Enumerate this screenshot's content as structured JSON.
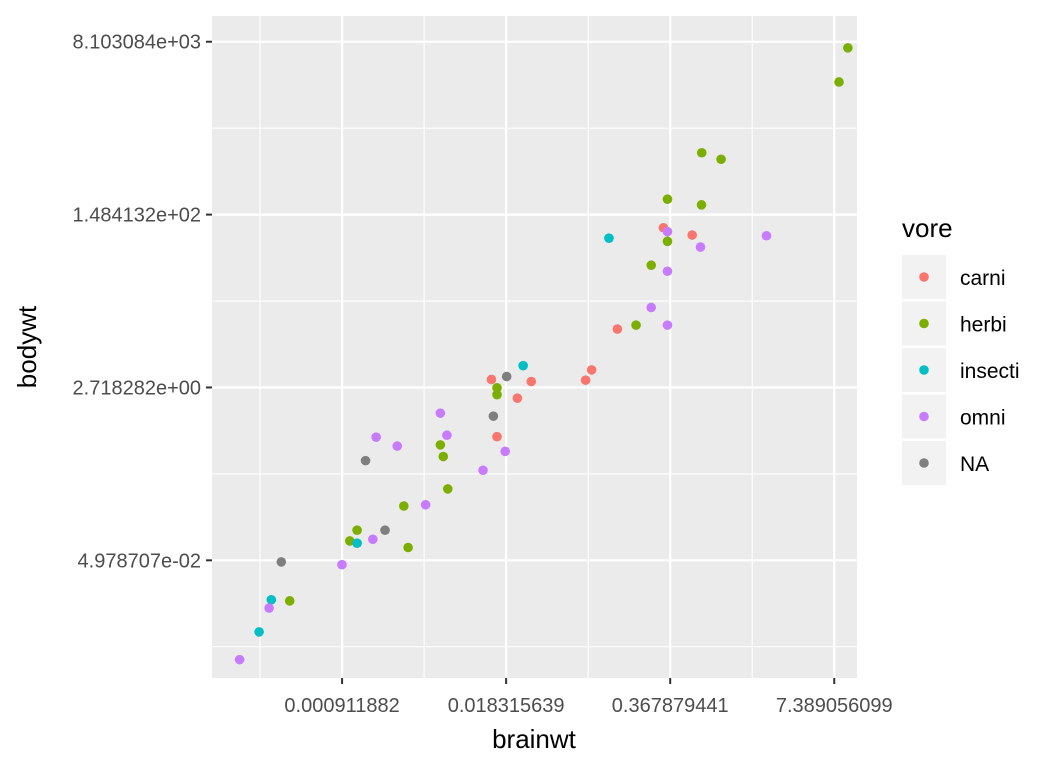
{
  "chart_data": {
    "type": "scatter",
    "title": "",
    "xlabel": "brainwt",
    "ylabel": "bodywt",
    "x_scale": "log",
    "y_scale": "log",
    "x_ticks": [
      {
        "label": "0.000911882",
        "value": 0.000911882
      },
      {
        "label": "0.018315639",
        "value": 0.018315639
      },
      {
        "label": "0.367879441",
        "value": 0.367879441
      },
      {
        "label": "7.389056099",
        "value": 7.389056099
      }
    ],
    "y_ticks": [
      {
        "label": "4.978707e-02",
        "value": 0.04978707
      },
      {
        "label": "2.718282e+00",
        "value": 2.718282
      },
      {
        "label": "1.484132e+02",
        "value": 148.4132
      },
      {
        "label": "8.103084e+03",
        "value": 8103.084
      }
    ],
    "xlim": [
      8.45e-05,
      11.2
    ],
    "ylim": [
      0.00327,
      14700
    ],
    "grid": true,
    "legend": {
      "title": "vore",
      "position": "right",
      "items": [
        {
          "label": "carni",
          "color": "#F8766D"
        },
        {
          "label": "herbi",
          "color": "#7CAE00"
        },
        {
          "label": "insecti",
          "color": "#00BFC4"
        },
        {
          "label": "omni",
          "color": "#C77CFF"
        },
        {
          "label": "NA",
          "color": "#7F7F7F"
        }
      ]
    },
    "series": [
      {
        "name": "carni",
        "color": "#F8766D",
        "points": [
          {
            "x": 0.325,
            "y": 109.5
          },
          {
            "x": 0.55,
            "y": 92.5
          },
          {
            "x": 0.14,
            "y": 10.5
          },
          {
            "x": 0.014,
            "y": 3.27
          },
          {
            "x": 0.029,
            "y": 3.12
          },
          {
            "x": 0.0784,
            "y": 3.22
          },
          {
            "x": 0.0875,
            "y": 4.08
          },
          {
            "x": 0.0225,
            "y": 2.12
          },
          {
            "x": 0.0155,
            "y": 0.87
          }
        ]
      },
      {
        "name": "herbi",
        "color": "#7CAE00",
        "points": [
          {
            "x": 9.48,
            "y": 7029
          },
          {
            "x": 8.06,
            "y": 3195
          },
          {
            "x": 0.655,
            "y": 621
          },
          {
            "x": 0.933,
            "y": 534
          },
          {
            "x": 0.652,
            "y": 186
          },
          {
            "x": 0.35,
            "y": 212
          },
          {
            "x": 0.35,
            "y": 80
          },
          {
            "x": 0.26,
            "y": 46
          },
          {
            "x": 0.197,
            "y": 11.5
          },
          {
            "x": 0.0155,
            "y": 2.7
          },
          {
            "x": 0.0155,
            "y": 2.3
          },
          {
            "x": 0.0055,
            "y": 0.72
          },
          {
            "x": 0.0058,
            "y": 0.55
          },
          {
            "x": 0.0063,
            "y": 0.26
          },
          {
            "x": 0.00282,
            "y": 0.175
          },
          {
            "x": 0.0012,
            "y": 0.1
          },
          {
            "x": 0.00105,
            "y": 0.078
          },
          {
            "x": 0.00305,
            "y": 0.067
          },
          {
            "x": 0.00035,
            "y": 0.0195
          }
        ]
      },
      {
        "name": "insecti",
        "color": "#00BFC4",
        "points": [
          {
            "x": 0.12,
            "y": 86
          },
          {
            "x": 0.025,
            "y": 4.5
          },
          {
            "x": 0.0012,
            "y": 0.074
          },
          {
            "x": 0.00025,
            "y": 0.02
          },
          {
            "x": 0.0002,
            "y": 0.0095
          }
        ]
      },
      {
        "name": "omni",
        "color": "#C77CFF",
        "points": [
          {
            "x": 0.35,
            "y": 100
          },
          {
            "x": 2.14,
            "y": 91
          },
          {
            "x": 0.64,
            "y": 70
          },
          {
            "x": 0.35,
            "y": 40
          },
          {
            "x": 0.26,
            "y": 17.3
          },
          {
            "x": 0.35,
            "y": 11.5
          },
          {
            "x": 0.0055,
            "y": 1.5
          },
          {
            "x": 0.0062,
            "y": 0.9
          },
          {
            "x": 0.0017,
            "y": 0.86
          },
          {
            "x": 0.0025,
            "y": 0.7
          },
          {
            "x": 0.018,
            "y": 0.62
          },
          {
            "x": 0.012,
            "y": 0.4
          },
          {
            "x": 0.0042,
            "y": 0.18
          },
          {
            "x": 0.0016,
            "y": 0.081
          },
          {
            "x": 0.00091,
            "y": 0.045
          },
          {
            "x": 0.00024,
            "y": 0.0165
          },
          {
            "x": 0.00014,
            "y": 0.005
          }
        ]
      },
      {
        "name": "NA",
        "color": "#7F7F7F",
        "points": [
          {
            "x": 0.0185,
            "y": 3.5
          },
          {
            "x": 0.0145,
            "y": 1.4
          },
          {
            "x": 0.0014,
            "y": 0.5
          },
          {
            "x": 0.002,
            "y": 0.1
          },
          {
            "x": 0.0003,
            "y": 0.048
          }
        ]
      }
    ]
  }
}
